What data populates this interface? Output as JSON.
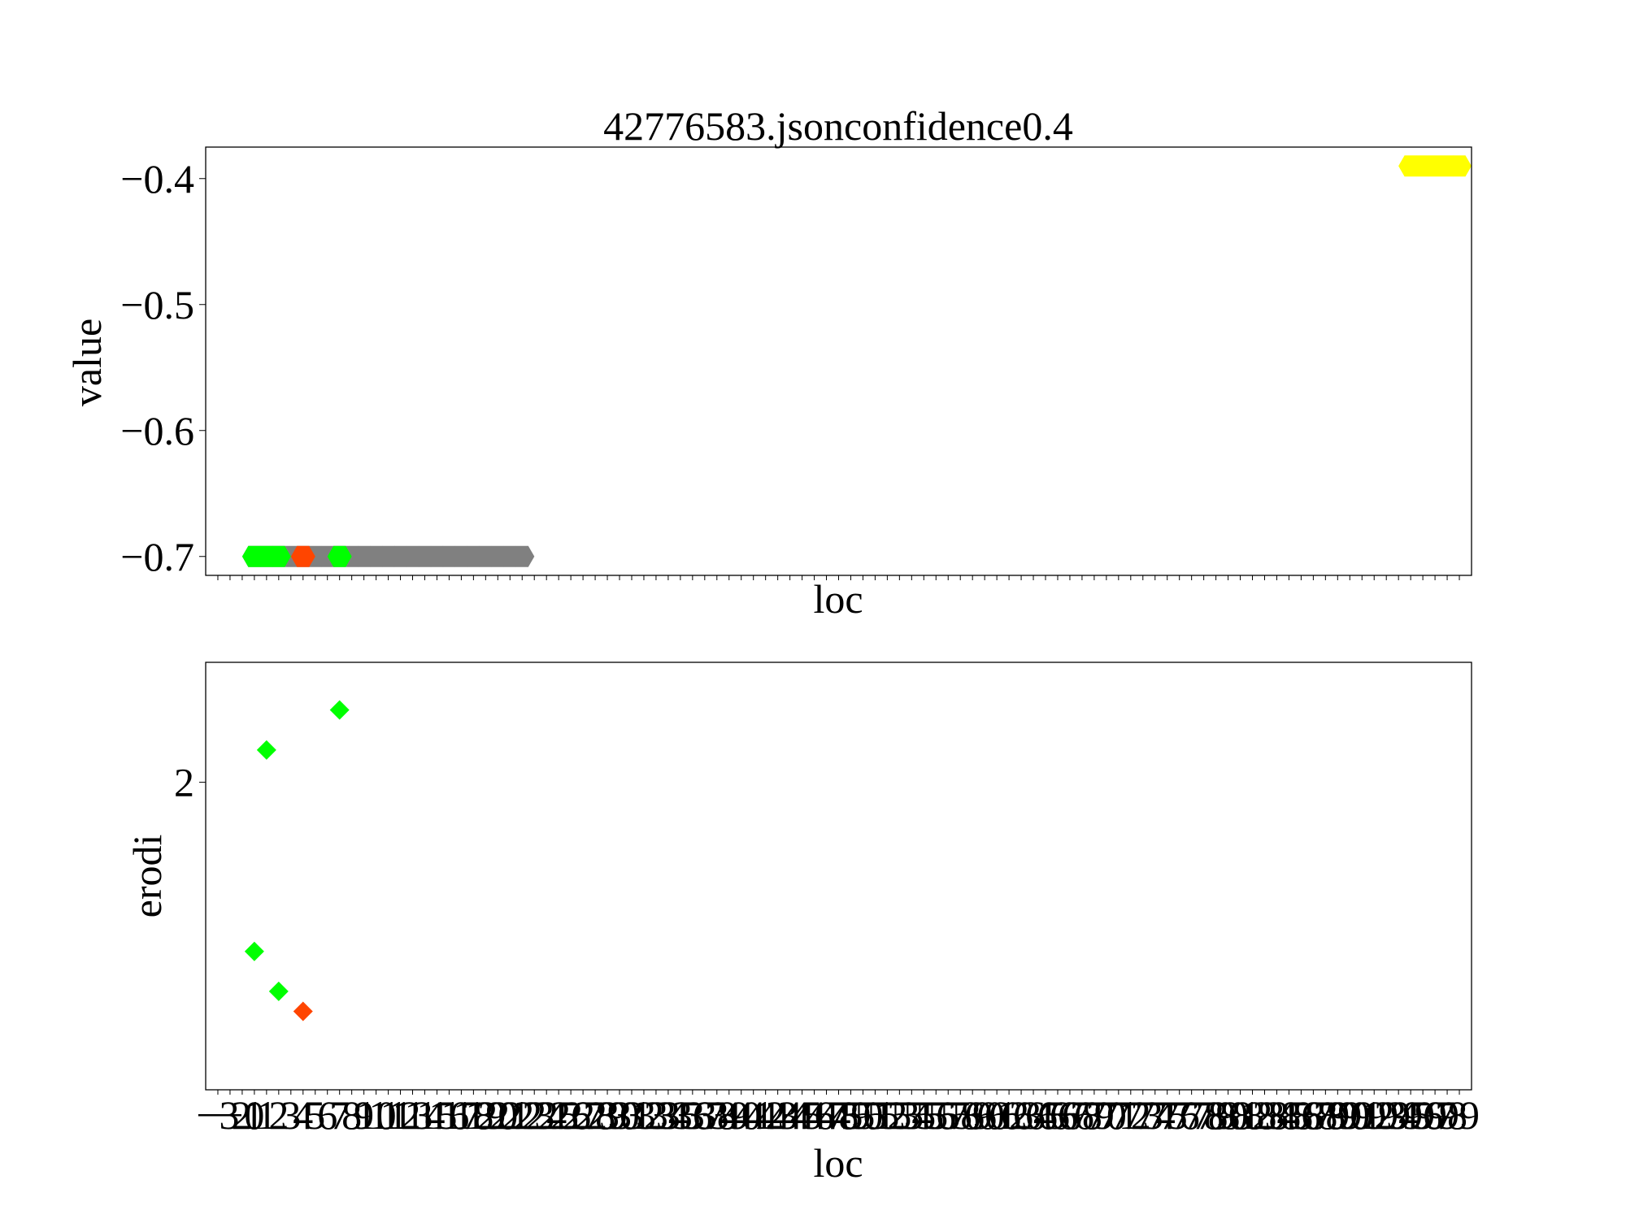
{
  "chart_data": [
    {
      "type": "scatter",
      "title": "42776583.jsonconfidence0.4",
      "xlabel": "loc",
      "ylabel": "value",
      "xlim": [
        -4,
        100
      ],
      "ylim": [
        -0.715,
        -0.375
      ],
      "y_ticks": [
        -0.7,
        -0.6,
        -0.5,
        -0.4
      ],
      "y_tick_labels": [
        "−0.7",
        "−0.6",
        "−0.5",
        "−0.4"
      ],
      "grid": false,
      "series": [
        {
          "color": "#808080",
          "marker": "hexagon",
          "x": [
            0,
            1,
            2,
            3,
            4,
            5,
            6,
            7,
            8,
            9,
            10,
            11,
            12,
            13,
            14,
            15,
            16,
            17,
            18,
            19,
            20,
            21,
            22
          ],
          "values": [
            -0.7,
            -0.7,
            -0.7,
            -0.7,
            -0.7,
            -0.7,
            -0.7,
            -0.7,
            -0.7,
            -0.7,
            -0.7,
            -0.7,
            -0.7,
            -0.7,
            -0.7,
            -0.7,
            -0.7,
            -0.7,
            -0.7,
            -0.7,
            -0.7,
            -0.7,
            -0.7
          ]
        },
        {
          "color": "#ffff00",
          "marker": "hexagon",
          "x": [
            95,
            96,
            97,
            98,
            99
          ],
          "values": [
            -0.39,
            -0.39,
            -0.39,
            -0.39,
            -0.39
          ]
        },
        {
          "color": "#00ff00",
          "marker": "hexagon",
          "x": [
            0,
            1,
            2
          ],
          "values": [
            -0.7,
            -0.7,
            -0.7
          ]
        },
        {
          "color": "#ff4500",
          "marker": "hexagon",
          "x": [
            4
          ],
          "values": [
            -0.7
          ]
        },
        {
          "color": "#00ff00",
          "marker": "hexagon",
          "x": [
            7
          ],
          "values": [
            -0.7
          ]
        }
      ]
    },
    {
      "type": "scatter",
      "xlabel": "loc",
      "ylabel": "erodi",
      "xlim": [
        -4,
        100
      ],
      "ylim": [
        0.0,
        2.78
      ],
      "y_ticks": [
        2
      ],
      "y_tick_labels": [
        "2"
      ],
      "x_tick_labels": [
        "−3",
        "−2",
        "−1",
        "0",
        "1",
        "2",
        "3",
        "4",
        "5",
        "6",
        "7",
        "8",
        "9",
        "10",
        "11",
        "12",
        "13",
        "14",
        "15",
        "16",
        "17",
        "18",
        "19",
        "20",
        "21",
        "22",
        "23",
        "24",
        "25",
        "26",
        "27",
        "28",
        "29",
        "30",
        "31",
        "32",
        "33",
        "34",
        "35",
        "36",
        "37",
        "38",
        "39",
        "40",
        "41",
        "42",
        "43",
        "44",
        "45",
        "46",
        "47",
        "48",
        "49",
        "50",
        "51",
        "52",
        "53",
        "54",
        "55",
        "56",
        "57",
        "58",
        "59",
        "60",
        "61",
        "62",
        "63",
        "64",
        "65",
        "66",
        "67",
        "68",
        "69",
        "70",
        "71",
        "72",
        "73",
        "74",
        "75",
        "76",
        "77",
        "78",
        "79",
        "80",
        "81",
        "82",
        "83",
        "84",
        "85",
        "86",
        "87",
        "88",
        "89",
        "90",
        "91",
        "92",
        "93",
        "94",
        "95",
        "96",
        "97",
        "98",
        "99"
      ],
      "grid": false,
      "series": [
        {
          "color": "#00ff00",
          "marker": "diamond",
          "x": [
            0,
            1,
            2,
            7
          ],
          "values": [
            0.9,
            2.21,
            0.64,
            2.47
          ]
        },
        {
          "color": "#ff4500",
          "marker": "diamond",
          "x": [
            4
          ],
          "values": [
            0.51
          ]
        }
      ]
    }
  ]
}
